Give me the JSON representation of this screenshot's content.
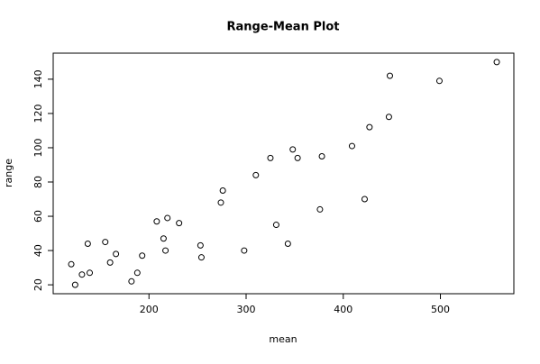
{
  "chart_data": {
    "type": "scatter",
    "title": "Range-Mean Plot",
    "x_label": "mean",
    "y_label": "range",
    "color": "#000000",
    "x": [
      120,
      124,
      131,
      139,
      137,
      155,
      160,
      166,
      182,
      188,
      193,
      208,
      215,
      217,
      219,
      231,
      253,
      254,
      274,
      276,
      298,
      310,
      325,
      331,
      343,
      348,
      353,
      376,
      378,
      409,
      422,
      427,
      447,
      448,
      499,
      558
    ],
    "values": [
      32,
      20,
      26,
      27,
      44,
      45,
      33,
      38,
      22,
      27,
      37,
      57,
      47,
      40,
      59,
      56,
      43,
      36,
      68,
      75,
      40,
      84,
      94,
      55,
      44,
      99,
      94,
      64,
      95,
      101,
      70,
      112,
      118,
      142,
      139,
      150
    ],
    "xlim": [
      101.4,
      575.6
    ],
    "ylim": [
      14.8,
      155.2
    ],
    "xticks": [
      200,
      300,
      400,
      500
    ],
    "yticks": [
      20,
      40,
      60,
      80,
      100,
      120,
      140
    ]
  }
}
